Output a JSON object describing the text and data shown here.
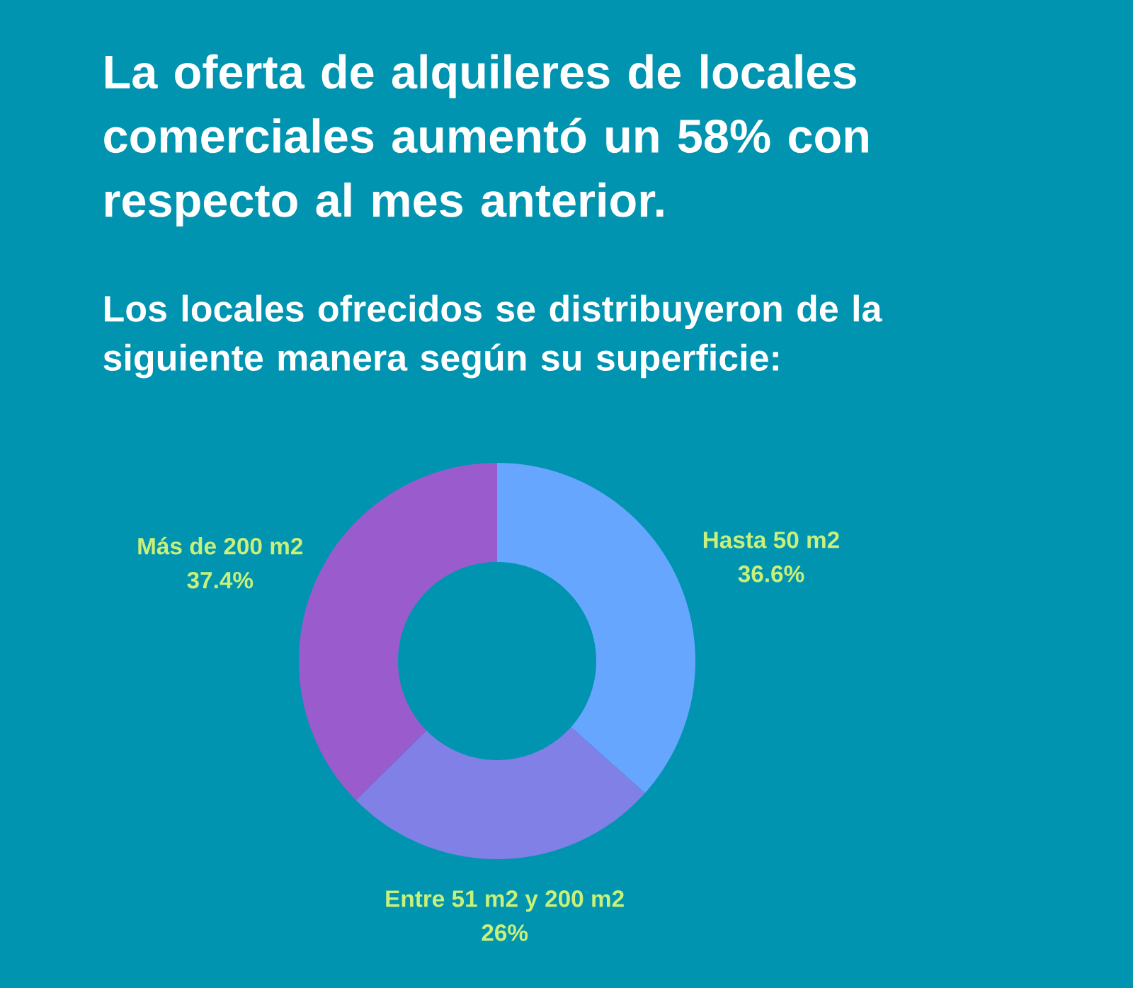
{
  "chart_data": {
    "type": "donut",
    "title": "La oferta de alquileres de locales comerciales aumentó un 58% con respecto al mes anterior.",
    "subtitle": "Los locales ofrecidos se distribuyeron de la siguiente manera según su superficie:",
    "categories": [
      "Hasta 50 m2",
      "Entre 51 m2 y 200 m2",
      "Más de 200 m2"
    ],
    "values": [
      36.6,
      26,
      37.4
    ],
    "colors": [
      "#66a6ff",
      "#8080e6",
      "#9a5ccc"
    ],
    "value_labels": [
      "36.6%",
      "26%",
      "37.4%"
    ]
  }
}
